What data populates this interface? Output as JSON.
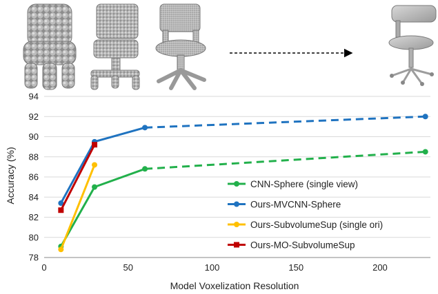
{
  "chart_data": {
    "type": "line",
    "title": "",
    "xlabel": "Model Voxelization Resolution",
    "ylabel": "Accuracy (%)",
    "xlim": [
      0,
      230
    ],
    "ylim": [
      78,
      94
    ],
    "xticks": [
      0,
      50,
      100,
      150,
      200
    ],
    "yticks": [
      78,
      80,
      82,
      84,
      86,
      88,
      90,
      92,
      94
    ],
    "grid": "horizontal",
    "legend_position": "lower-right",
    "series": [
      {
        "name": "CNN-Sphere (single view)",
        "color": "#22b04b",
        "marker": "circle",
        "solid": {
          "x": [
            10,
            30,
            60
          ],
          "y": [
            79.1,
            85.0,
            86.8
          ]
        },
        "dashed": {
          "x": [
            60,
            227
          ],
          "y": [
            86.8,
            88.5
          ]
        }
      },
      {
        "name": "Ours-MVCNN-Sphere",
        "color": "#1f73c0",
        "marker": "circle",
        "solid": {
          "x": [
            10,
            30,
            60
          ],
          "y": [
            83.4,
            89.5,
            90.9
          ]
        },
        "dashed": {
          "x": [
            60,
            227
          ],
          "y": [
            90.9,
            92.0
          ]
        }
      },
      {
        "name": "Ours-SubvolumeSup (single ori)",
        "color": "#ffc000",
        "marker": "circle",
        "solid": {
          "x": [
            10,
            30
          ],
          "y": [
            78.8,
            87.2
          ]
        }
      },
      {
        "name": "Ours-MO-SubvolumeSup",
        "color": "#c00000",
        "marker": "square",
        "solid": {
          "x": [
            10,
            30
          ],
          "y": [
            82.7,
            89.2
          ]
        }
      }
    ]
  },
  "illustration": {
    "items": [
      "voxel-chair-coarse",
      "voxel-chair-medium",
      "voxel-chair-fine",
      "mesh-chair"
    ],
    "arrow": "dashed-right-arrow"
  }
}
